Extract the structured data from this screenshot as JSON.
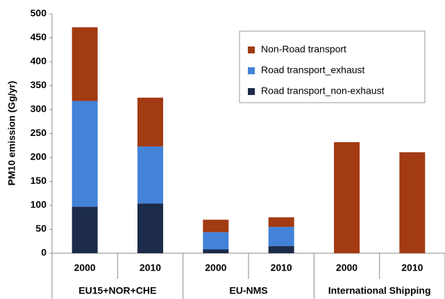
{
  "chart_data": {
    "type": "stacked-bar",
    "y_label": "PM10 emission (Gg/yr)",
    "categories": [
      "2000",
      "2010",
      "2000",
      "2010",
      "2000",
      "2010"
    ],
    "group_labels": [
      "EU15+NOR+CHE",
      "EU-NMS",
      "International Shipping"
    ],
    "series": [
      {
        "name": "Road transport_non-exhaust",
        "color": "#1c2b4a",
        "values": [
          97,
          104,
          8,
          15,
          null,
          null
        ]
      },
      {
        "name": "Road transport_exhaust",
        "color": "#4282d8",
        "values": [
          221,
          119,
          36,
          40,
          null,
          null
        ]
      },
      {
        "name": "Non-Road transport",
        "color": "#a23a12",
        "values": [
          154,
          102,
          26,
          20,
          232,
          211
        ]
      }
    ],
    "ylim": [
      0,
      500
    ],
    "yticks": [
      0,
      50,
      100,
      150,
      200,
      250,
      300,
      350,
      400,
      450,
      500
    ],
    "grid": false,
    "legend": "upper right"
  }
}
